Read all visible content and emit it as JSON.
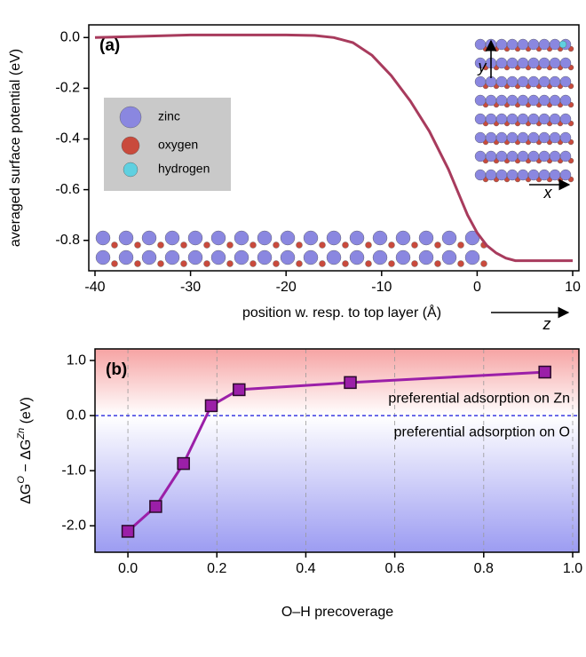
{
  "chart_data": [
    {
      "type": "line",
      "panel_label": "(a)",
      "ylabel": "averaged surface potential (eV)",
      "xlabel": "position w. resp. to top layer (Å)",
      "x": [
        -40,
        -35,
        -30,
        -25,
        -20,
        -17,
        -15,
        -13,
        -11,
        -9,
        -7,
        -5,
        -3,
        -1,
        0,
        1,
        2,
        3,
        4,
        6,
        8,
        10
      ],
      "series": [
        {
          "color": "#a83b5d",
          "values": [
            0.0,
            0.005,
            0.01,
            0.01,
            0.01,
            0.008,
            0.0,
            -0.02,
            -0.07,
            -0.15,
            -0.25,
            -0.37,
            -0.52,
            -0.7,
            -0.77,
            -0.82,
            -0.85,
            -0.87,
            -0.88,
            -0.88,
            -0.88,
            -0.88
          ]
        }
      ],
      "xlim": [
        -40.65,
        10.65
      ],
      "xticks": [
        -40,
        -30,
        -20,
        -10,
        0,
        10
      ],
      "ylim": [
        -0.92,
        0.05
      ],
      "yticks": [
        {
          "value": 0,
          "label": "0.0"
        },
        -0.2,
        -0.4,
        -0.6,
        -0.8
      ],
      "atom_legend": [
        "zinc",
        "oxygen",
        "hydrogen"
      ],
      "axis_arrows": [
        "y",
        "x",
        "z"
      ]
    },
    {
      "type": "line",
      "panel_label": "(b)",
      "markers": "square",
      "ylabel_parts": [
        "ΔG",
        "O",
        " − ΔG",
        "Zn",
        " (eV)"
      ],
      "xlabel": "O–H precoverage",
      "x": [
        0,
        0.0625,
        0.125,
        0.1875,
        0.25,
        0.5,
        0.9375
      ],
      "series": [
        {
          "color": "#9b1fa8",
          "values": [
            -2.1,
            -1.65,
            -0.87,
            0.18,
            0.47,
            0.6,
            0.79
          ]
        }
      ],
      "xlim": [
        -0.074,
        1.014
      ],
      "xticks": [
        {
          "value": 0,
          "label": "0.0"
        },
        0.2,
        0.4,
        0.6,
        0.8,
        {
          "value": 1,
          "label": "1.0"
        }
      ],
      "ylim": [
        -2.48,
        1.21
      ],
      "yticks": [
        {
          "value": 1,
          "label": "1.0"
        },
        {
          "value": 0,
          "label": "0.0"
        },
        {
          "value": -1,
          "label": "-1.0"
        },
        {
          "value": -2,
          "label": "-2.0"
        }
      ],
      "grid": "x",
      "hline": 0,
      "hline_color": "#3a3ae0",
      "background_gradient": [
        "#f6a3a3",
        "#ffffff",
        "#9c9cf2"
      ],
      "annotations": [
        "preferential adsorption on Zn",
        "preferential adsorption on O"
      ]
    }
  ]
}
